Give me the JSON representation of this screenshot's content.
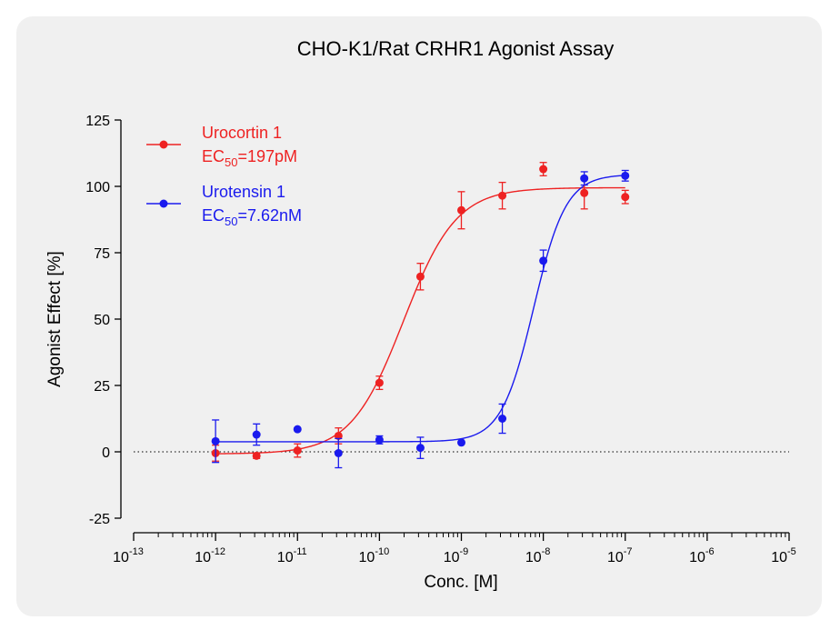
{
  "chart_data": {
    "type": "scatter",
    "title": "CHO-K1/Rat CRHR1 Agonist Assay",
    "xlabel": "Conc. [M]",
    "ylabel": "Agonist Effect [%]",
    "xscale": "log",
    "xlim_exponent": [
      -13,
      -5
    ],
    "ylim": [
      -25,
      125
    ],
    "y_ticks": [
      -25,
      0,
      25,
      50,
      75,
      100,
      125
    ],
    "x_tick_base": "10",
    "x_tick_exponents": [
      "-13",
      "-12",
      "-11",
      "-10",
      "-9",
      "-8",
      "-7",
      "-6",
      "-5"
    ],
    "reference_line_y": 0,
    "legend_position": "top-left",
    "series": [
      {
        "name": "Urocortin 1",
        "ec50_prefix": "EC",
        "ec50_sub": "50",
        "ec50_value": "=197pM",
        "color": "#ee2222",
        "fit": {
          "bottom": -0.8,
          "top": 99.5,
          "log_ec50": -9.706,
          "hill": 1.35
        },
        "points": [
          {
            "x": -12.0,
            "y": -0.5,
            "err": 3.0
          },
          {
            "x": -11.5,
            "y": -1.5,
            "err": 1.0
          },
          {
            "x": -11.0,
            "y": 0.5,
            "err": 2.5
          },
          {
            "x": -10.5,
            "y": 6.0,
            "err": 3.0
          },
          {
            "x": -10.0,
            "y": 26.0,
            "err": 2.5
          },
          {
            "x": -9.5,
            "y": 66.0,
            "err": 5.0
          },
          {
            "x": -9.0,
            "y": 91.0,
            "err": 7.0
          },
          {
            "x": -8.5,
            "y": 96.5,
            "err": 5.0
          },
          {
            "x": -8.0,
            "y": 106.5,
            "err": 2.5
          },
          {
            "x": -7.5,
            "y": 97.5,
            "err": 6.0
          },
          {
            "x": -7.0,
            "y": 96.0,
            "err": 2.5
          }
        ]
      },
      {
        "name": "Urotensin 1",
        "ec50_prefix": "EC",
        "ec50_sub": "50",
        "ec50_value": "=7.62nM",
        "color": "#1a1aee",
        "fit": {
          "bottom": 3.8,
          "top": 104.5,
          "log_ec50": -8.118,
          "hill": 2.2
        },
        "points": [
          {
            "x": -12.0,
            "y": 4.0,
            "err": 8.0
          },
          {
            "x": -11.5,
            "y": 6.5,
            "err": 4.0
          },
          {
            "x": -11.0,
            "y": 8.5,
            "err": 0
          },
          {
            "x": -10.5,
            "y": -0.5,
            "err": 5.5
          },
          {
            "x": -10.0,
            "y": 4.5,
            "err": 1.5
          },
          {
            "x": -9.5,
            "y": 1.5,
            "err": 4.0
          },
          {
            "x": -9.0,
            "y": 3.5,
            "err": 0
          },
          {
            "x": -8.5,
            "y": 12.5,
            "err": 5.5
          },
          {
            "x": -8.0,
            "y": 72.0,
            "err": 4.0
          },
          {
            "x": -7.5,
            "y": 103.0,
            "err": 2.5
          },
          {
            "x": -7.0,
            "y": 104.0,
            "err": 2.0
          }
        ]
      }
    ]
  }
}
